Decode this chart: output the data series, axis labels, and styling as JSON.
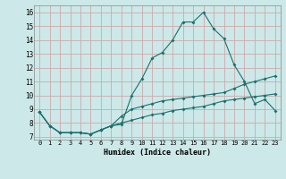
{
  "xlabel": "Humidex (Indice chaleur)",
  "ylabel": "",
  "background_color": "#cce8e8",
  "grid_color": "#ccaaaa",
  "line_color": "#1a7070",
  "xlim": [
    -0.5,
    23.5
  ],
  "ylim": [
    6.8,
    16.5
  ],
  "xticks": [
    0,
    1,
    2,
    3,
    4,
    5,
    6,
    7,
    8,
    9,
    10,
    11,
    12,
    13,
    14,
    15,
    16,
    17,
    18,
    19,
    20,
    21,
    22,
    23
  ],
  "yticks": [
    7,
    8,
    9,
    10,
    11,
    12,
    13,
    14,
    15,
    16
  ],
  "line1": [
    8.8,
    7.8,
    7.3,
    7.3,
    7.3,
    7.2,
    7.5,
    7.8,
    7.9,
    10.0,
    11.2,
    12.7,
    13.1,
    14.0,
    15.3,
    15.3,
    16.0,
    14.8,
    14.1,
    12.2,
    11.0,
    9.4,
    9.7,
    8.9
  ],
  "line2": [
    8.8,
    7.8,
    7.3,
    7.3,
    7.3,
    7.2,
    7.5,
    7.8,
    8.5,
    9.0,
    9.2,
    9.4,
    9.6,
    9.7,
    9.8,
    9.9,
    10.0,
    10.1,
    10.2,
    10.5,
    10.8,
    11.0,
    11.2,
    11.4
  ],
  "line3": [
    8.8,
    7.8,
    7.3,
    7.3,
    7.3,
    7.2,
    7.5,
    7.8,
    8.0,
    8.2,
    8.4,
    8.6,
    8.7,
    8.9,
    9.0,
    9.1,
    9.2,
    9.4,
    9.6,
    9.7,
    9.8,
    9.9,
    10.0,
    10.1
  ]
}
